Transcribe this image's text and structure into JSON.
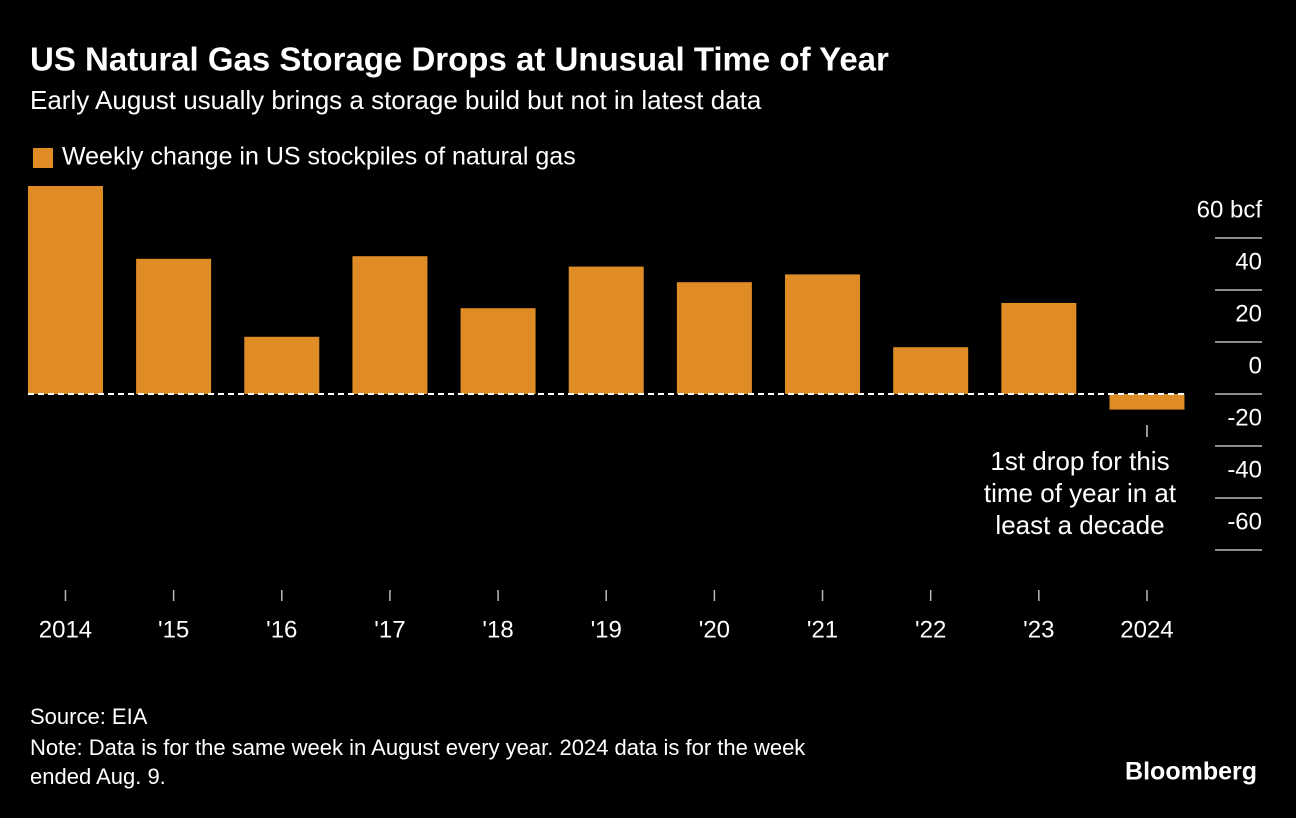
{
  "chart_data": {
    "type": "bar",
    "title": "US Natural Gas Storage Drops at Unusual Time of Year",
    "subtitle": "Early August usually brings a storage build but not in latest data",
    "series": [
      {
        "name": "Weekly change in US stockpiles of natural gas",
        "color": "#e08c26",
        "values": [
          80,
          52,
          22,
          53,
          33,
          49,
          43,
          46,
          18,
          35,
          -6
        ]
      }
    ],
    "categories": [
      "2014",
      "'15",
      "'16",
      "'17",
      "'18",
      "'19",
      "'20",
      "'21",
      "'22",
      "'23",
      "2024"
    ],
    "ylim": [
      -60,
      80
    ],
    "yticks": [
      -60,
      -40,
      -20,
      0,
      20,
      40,
      {
        "value": 60,
        "label": "60 bcf"
      }
    ],
    "annotation": [
      "1st drop for this",
      "time of year in at",
      "least a decade"
    ],
    "source": "Source: EIA",
    "note": [
      "Note: Data is for the same week in August every year. 2024 data is for the week",
      "ended Aug. 9."
    ],
    "brand": "Bloomberg"
  }
}
